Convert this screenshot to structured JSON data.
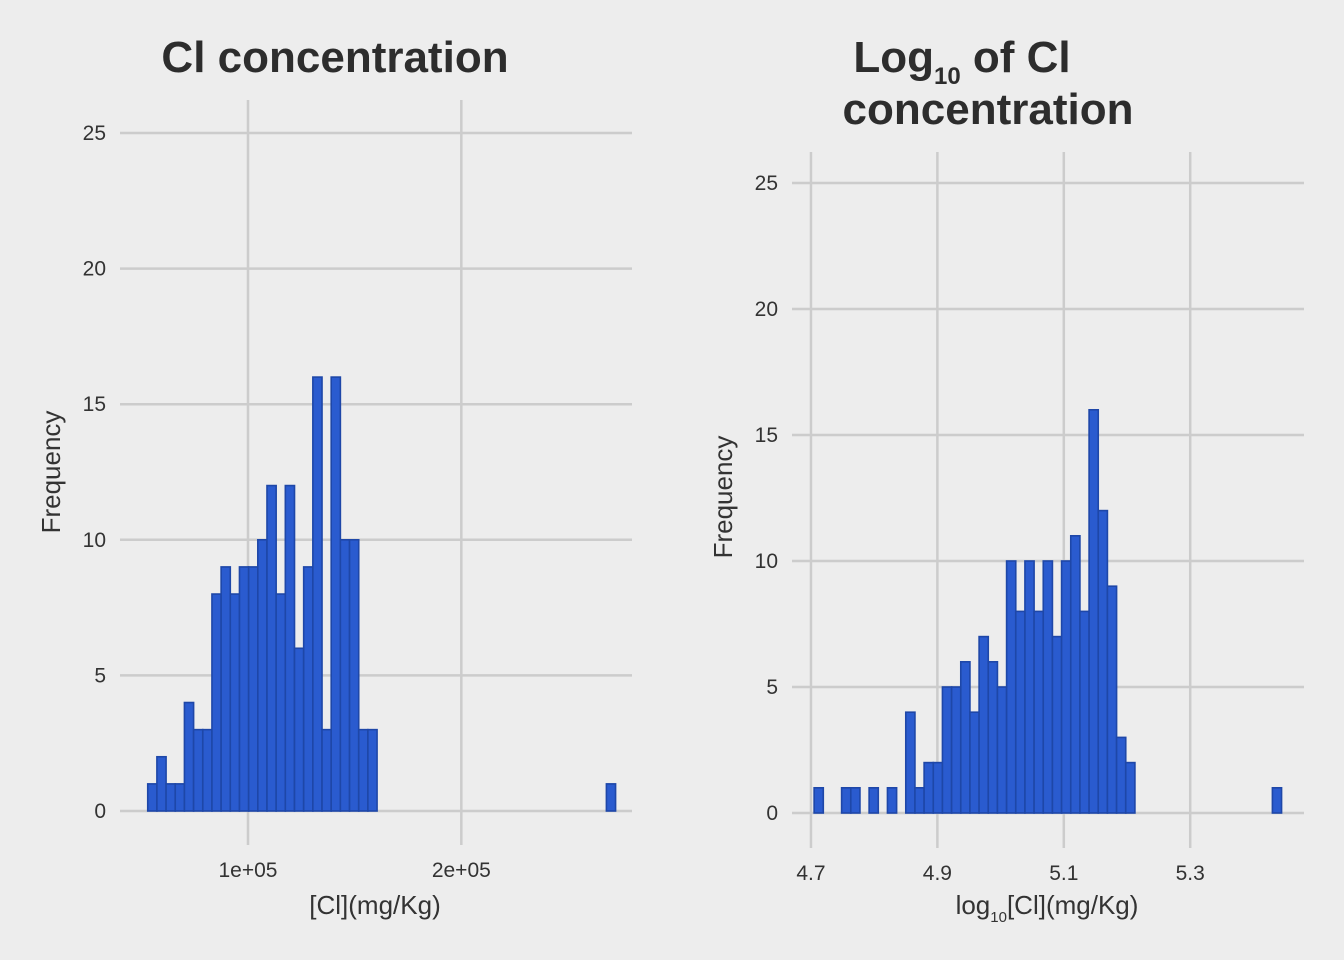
{
  "colors": {
    "background": "#ededed",
    "bar_fill": "#2a5bcf",
    "bar_edge": "#1e47a8",
    "grid": "#cccccc",
    "text": "#333333"
  },
  "chart_data": [
    {
      "type": "bar",
      "title": "Cl concentration",
      "xlabel": "[Cl](mg/Kg)",
      "ylabel": "Frequency",
      "xlim": [
        40000,
        280000
      ],
      "ylim": [
        -1,
        26
      ],
      "xticks": [
        100000,
        200000
      ],
      "xtick_labels": [
        "1e+05",
        "2e+05"
      ],
      "yticks": [
        0,
        5,
        10,
        15,
        20,
        25
      ],
      "ytick_labels": [
        "0",
        "5",
        "10",
        "15",
        "20",
        "25"
      ],
      "grid": true,
      "bin_start": 53000,
      "bin_width": 4300,
      "values": [
        1,
        2,
        1,
        1,
        4,
        3,
        3,
        8,
        9,
        8,
        9,
        9,
        10,
        12,
        8,
        12,
        6,
        9,
        16,
        3,
        16,
        10,
        10,
        3,
        3,
        0,
        0,
        0,
        0,
        0,
        0,
        0,
        0,
        0,
        0,
        0,
        0,
        0,
        0,
        0,
        0,
        0,
        0,
        0,
        0,
        0,
        0,
        0,
        0,
        0,
        1
      ]
    },
    {
      "type": "bar",
      "title_main": "Log",
      "title_sub": "10",
      "title_rest": " of Cl",
      "title_line2": "concentration",
      "xlabel_main": "log",
      "xlabel_sub": "10",
      "xlabel_rest": "[Cl](mg/Kg)",
      "ylabel": "Frequency",
      "xlim": [
        4.67,
        5.48
      ],
      "ylim": [
        -1,
        26
      ],
      "xticks": [
        4.7,
        4.9,
        5.1,
        5.3
      ],
      "xtick_labels": [
        "4.7",
        "4.9",
        "5.1",
        "5.3"
      ],
      "yticks": [
        0,
        5,
        10,
        15,
        20,
        25
      ],
      "ytick_labels": [
        "0",
        "5",
        "10",
        "15",
        "20",
        "25"
      ],
      "grid": true,
      "bin_start": 4.705,
      "bin_width": 0.0145,
      "values": [
        1,
        0,
        0,
        1,
        1,
        0,
        1,
        0,
        1,
        0,
        4,
        1,
        2,
        2,
        5,
        5,
        6,
        4,
        7,
        6,
        5,
        10,
        8,
        10,
        8,
        10,
        7,
        10,
        11,
        8,
        16,
        12,
        9,
        3,
        2,
        0,
        0,
        0,
        0,
        0,
        0,
        0,
        0,
        0,
        0,
        0,
        0,
        0,
        0,
        0,
        1
      ]
    }
  ]
}
